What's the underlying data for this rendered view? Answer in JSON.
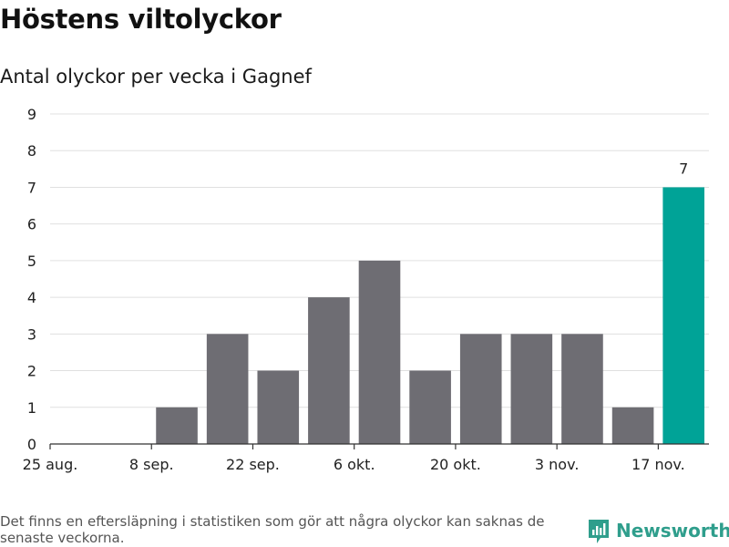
{
  "title": "Höstens viltolyckor",
  "subtitle": "Antal olyckor per vecka i Gagnef",
  "footnote": "Det finns en eftersläpning i statistiken som gör att några olyckor kan saknas de senaste veckorna.",
  "logo": {
    "name": "Newsworthy",
    "icon": "newsworthy-logo-icon"
  },
  "colors": {
    "bar": "#6e6d73",
    "highlight": "#00a397",
    "grid": "#e0e0e0",
    "axis": "#333333",
    "logo": "#2f9e8c"
  },
  "chart_data": {
    "type": "bar",
    "title": "Höstens viltolyckor",
    "subtitle": "Antal olyckor per vecka i Gagnef",
    "xlabel": "",
    "ylabel": "",
    "ylim": [
      0,
      9
    ],
    "yticks": [
      "0",
      "1",
      "2",
      "3",
      "4",
      "5",
      "6",
      "7",
      "8",
      "9"
    ],
    "categories": [
      "25 aug.",
      "1 sep.",
      "8 sep.",
      "15 sep.",
      "22 sep.",
      "29 sep.",
      "6 okt.",
      "13 okt.",
      "20 okt.",
      "27 okt.",
      "3 nov.",
      "10 nov.",
      "17 nov."
    ],
    "values": [
      0,
      0,
      1,
      3,
      2,
      4,
      5,
      2,
      3,
      3,
      3,
      1,
      7
    ],
    "xtick_labels": [
      {
        "index": 0,
        "label": "25 aug."
      },
      {
        "index": 2,
        "label": "8 sep."
      },
      {
        "index": 4,
        "label": "22 sep."
      },
      {
        "index": 6,
        "label": "6 okt."
      },
      {
        "index": 8,
        "label": "20 okt."
      },
      {
        "index": 10,
        "label": "3 nov."
      },
      {
        "index": 12,
        "label": "17 nov."
      }
    ],
    "highlight_index": 12,
    "data_labels": [
      {
        "index": 12,
        "label": "7"
      }
    ],
    "grid": true
  }
}
